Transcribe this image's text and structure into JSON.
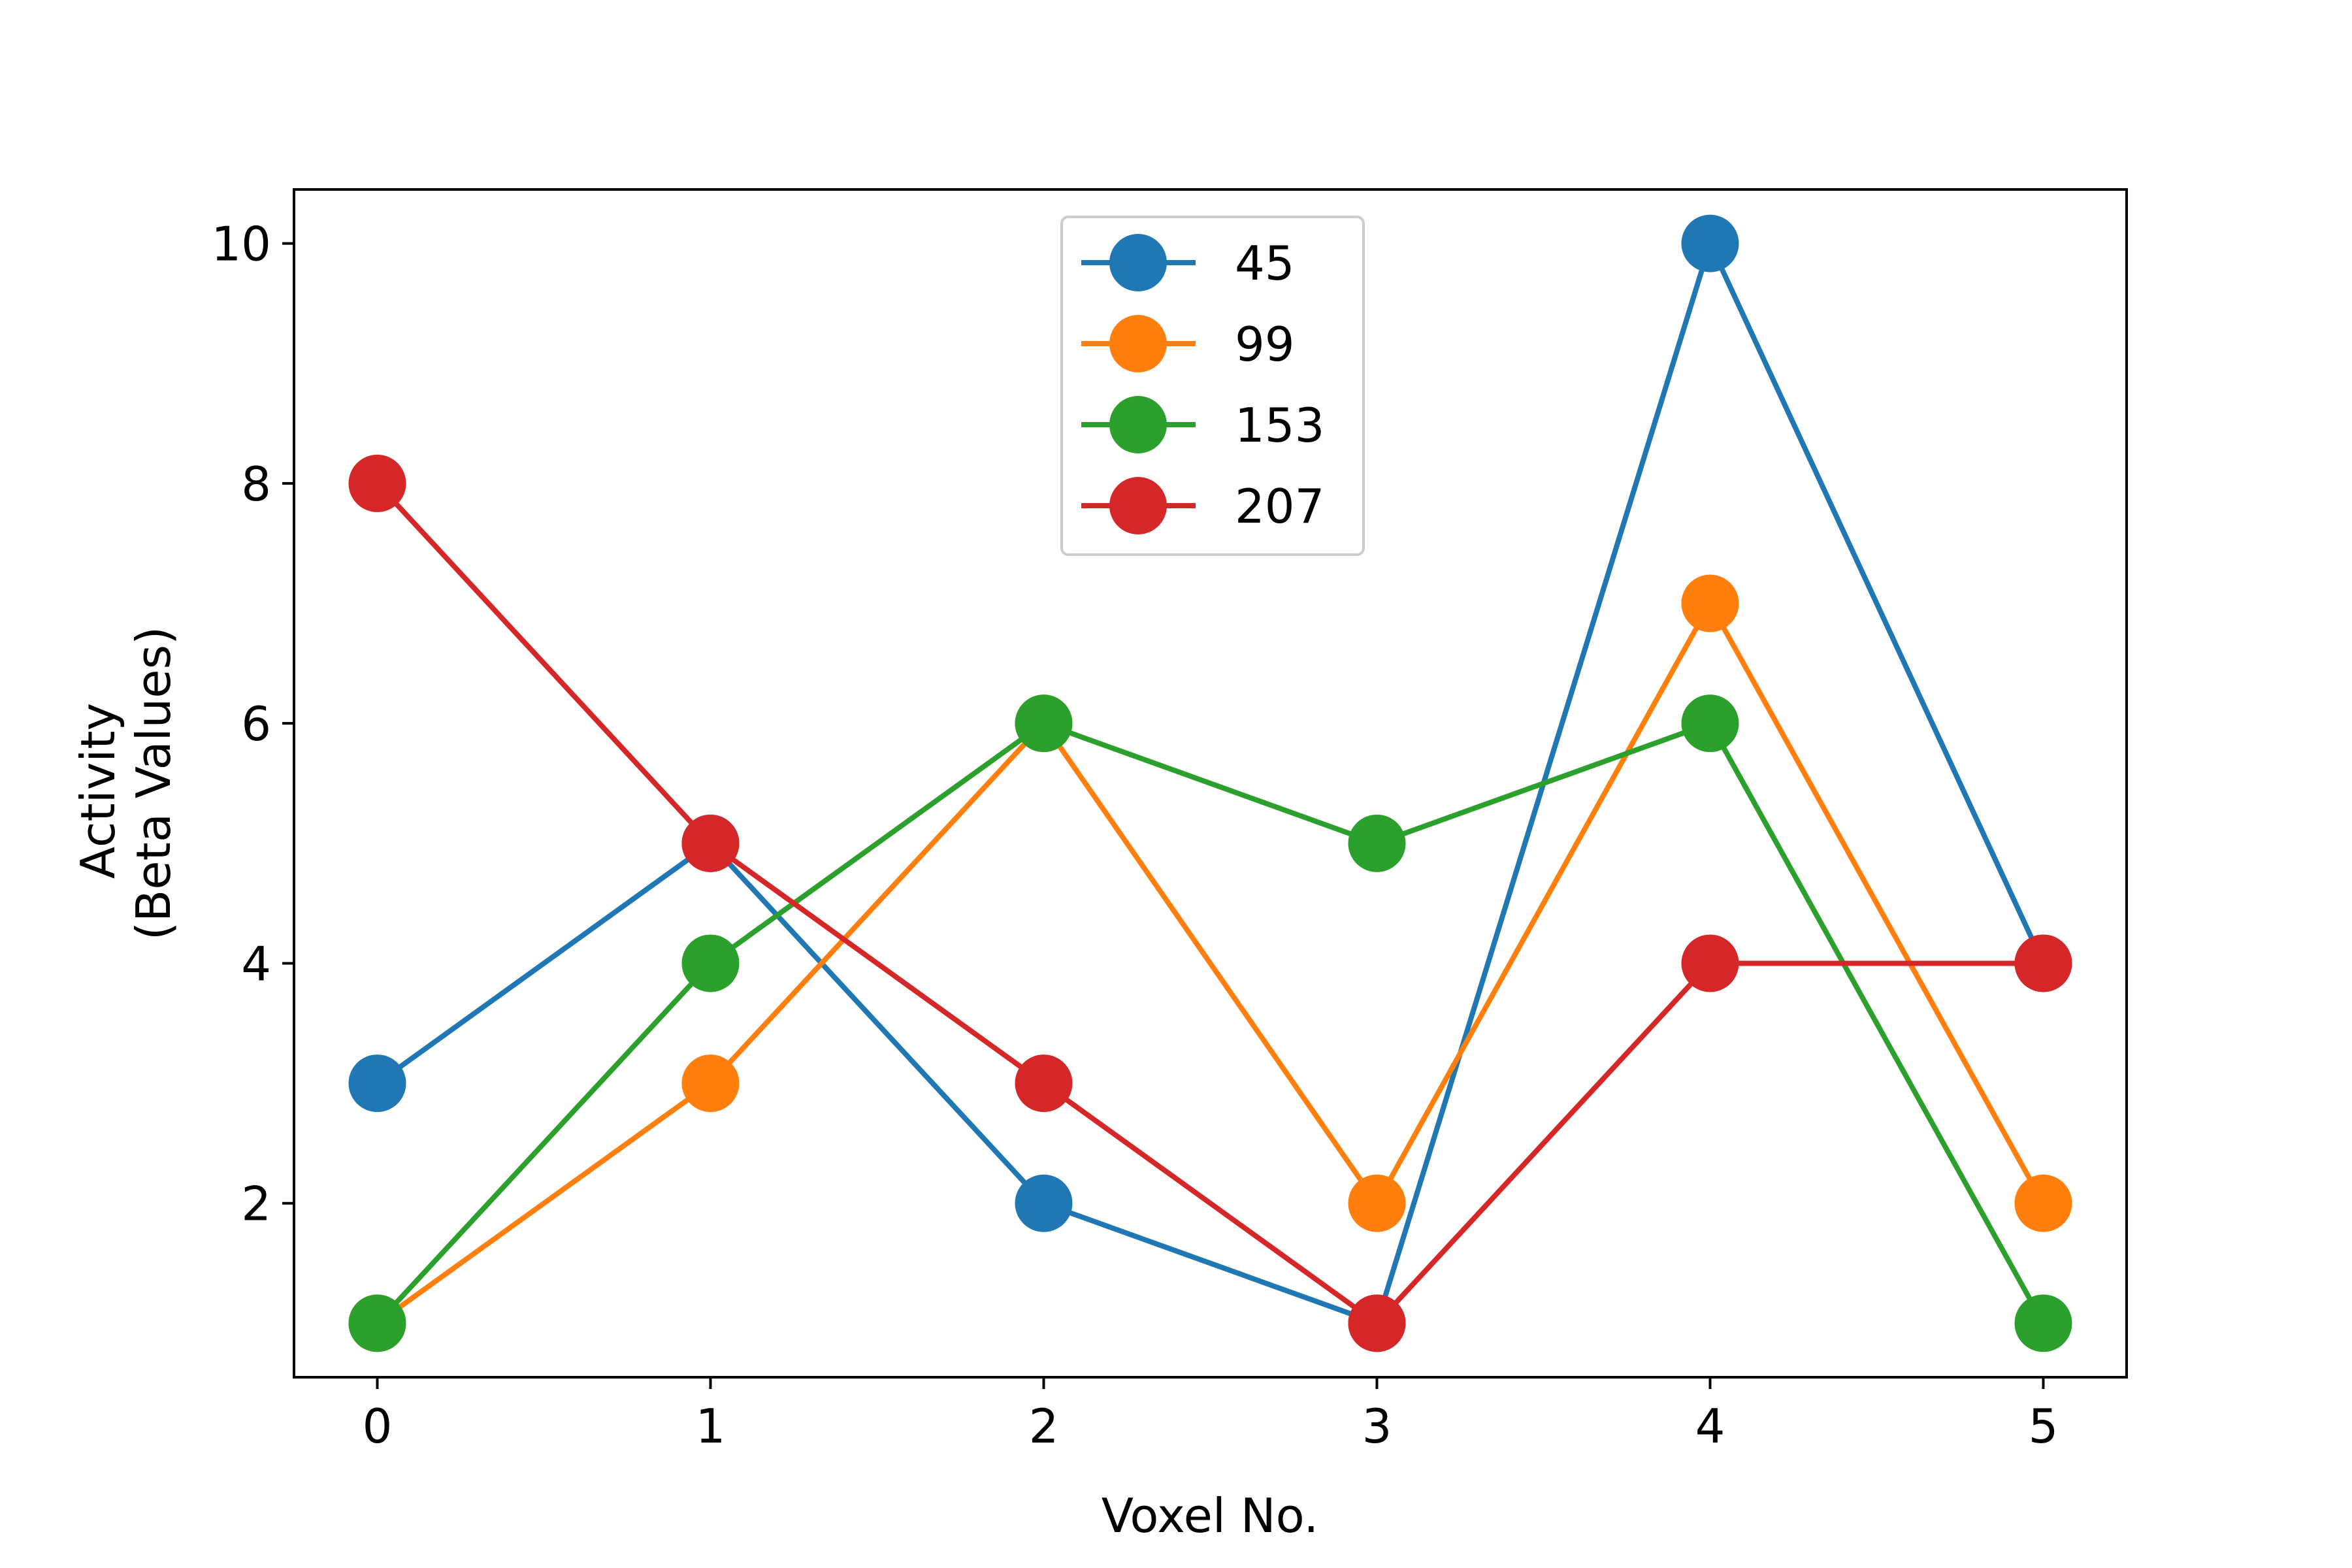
{
  "chart_data": {
    "type": "line",
    "x": [
      0,
      1,
      2,
      3,
      4,
      5
    ],
    "series": [
      {
        "name": "45",
        "color": "#1f77b4",
        "values": [
          3,
          5,
          2,
          1,
          10,
          4
        ]
      },
      {
        "name": "99",
        "color": "#ff7f0e",
        "values": [
          1,
          3,
          6,
          2,
          7,
          2
        ]
      },
      {
        "name": "153",
        "color": "#2ca02c",
        "values": [
          1,
          4,
          6,
          5,
          6,
          1
        ]
      },
      {
        "name": "207",
        "color": "#d62728",
        "values": [
          8,
          5,
          3,
          1,
          4,
          4
        ]
      }
    ],
    "xlabel": "Voxel No.",
    "ylabel_lines": [
      "Activity",
      "(Beta Values)"
    ],
    "xticks": [
      "0",
      "1",
      "2",
      "3",
      "4",
      "5"
    ],
    "yticks": [
      "2",
      "4",
      "6",
      "8",
      "10"
    ],
    "xlim": [
      -0.25,
      5.25
    ],
    "ylim": [
      0.55,
      10.45
    ],
    "legend_position": "upper-center",
    "grid": false,
    "marker": "circle"
  }
}
